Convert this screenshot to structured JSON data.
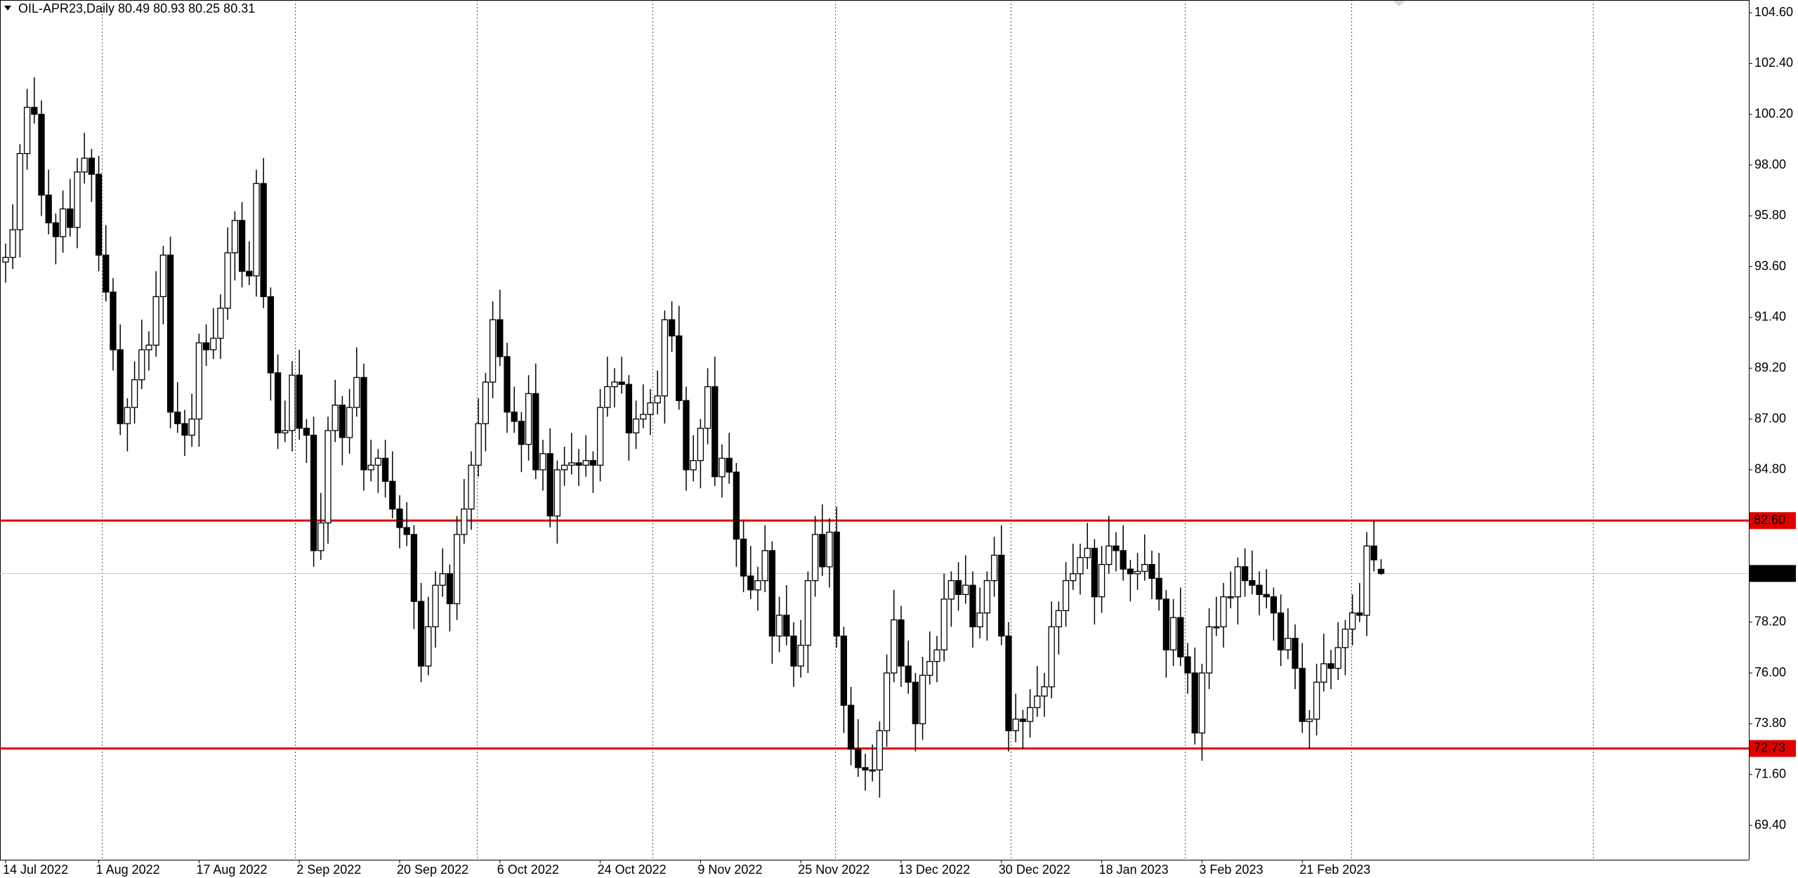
{
  "chart_data": {
    "type": "candlestick",
    "title": "OIL-APR23,Daily  80.49 80.93 80.25 80.31",
    "bull_color": "#ffffff",
    "bear_color": "#000000",
    "outline_color": "#000000",
    "categories": [
      "14 Jul 2022",
      null,
      null,
      null,
      null,
      null,
      null,
      null,
      null,
      null,
      null,
      null,
      null,
      "1 Aug 2022",
      null,
      null,
      null,
      null,
      null,
      null,
      null,
      null,
      null,
      null,
      null,
      null,
      null,
      "17 Aug 2022",
      null,
      null,
      null,
      null,
      null,
      null,
      null,
      null,
      null,
      null,
      null,
      null,
      null,
      "2 Sep 2022",
      null,
      null,
      null,
      null,
      null,
      null,
      null,
      null,
      null,
      null,
      null,
      null,
      null,
      "20 Sep 2022",
      null,
      null,
      null,
      null,
      null,
      null,
      null,
      null,
      null,
      null,
      null,
      null,
      null,
      "6 Oct 2022",
      null,
      null,
      null,
      null,
      null,
      null,
      null,
      null,
      null,
      null,
      null,
      null,
      null,
      "24 Oct 2022",
      null,
      null,
      null,
      null,
      null,
      null,
      null,
      null,
      null,
      null,
      null,
      null,
      null,
      "9 Nov 2022",
      null,
      null,
      null,
      null,
      null,
      null,
      null,
      null,
      null,
      null,
      null,
      null,
      null,
      "25 Nov 2022",
      null,
      null,
      null,
      null,
      null,
      null,
      null,
      null,
      null,
      null,
      null,
      null,
      null,
      "13 Dec 2022",
      null,
      null,
      null,
      null,
      null,
      null,
      null,
      null,
      null,
      null,
      null,
      null,
      null,
      "30 Dec 2022",
      null,
      null,
      null,
      null,
      null,
      null,
      null,
      null,
      null,
      null,
      null,
      null,
      null,
      "18 Jan 2023",
      null,
      null,
      null,
      null,
      null,
      null,
      null,
      null,
      null,
      null,
      null,
      null,
      null,
      "3 Feb 2023",
      null,
      null,
      null,
      null,
      null,
      null,
      null,
      null,
      null,
      null,
      null,
      null,
      null,
      "21 Feb 2023",
      null,
      null,
      null,
      null,
      null,
      null,
      null,
      null,
      null,
      null,
      null
    ],
    "open": [
      93.8,
      94.0,
      95.2,
      98.5,
      100.5,
      100.2,
      96.7,
      95.5,
      94.9,
      96.1,
      95.3,
      97.7,
      98.3,
      97.6,
      94.1,
      92.5,
      90.0,
      86.8,
      87.5,
      88.7,
      90.0,
      90.2,
      92.3,
      94.1,
      87.3,
      86.8,
      86.3,
      87.0,
      90.3,
      90.0,
      90.5,
      91.8,
      94.2,
      95.6,
      93.4,
      93.2,
      97.2,
      92.3,
      89.0,
      86.4,
      86.5,
      88.9,
      86.6,
      86.3,
      81.3,
      82.5,
      86.5,
      87.6,
      86.2,
      87.5,
      88.8,
      84.8,
      85.0,
      85.3,
      84.3,
      83.1,
      82.3,
      82.0,
      79.1,
      76.3,
      78.0,
      79.8,
      80.3,
      79.0,
      82.0,
      83.1,
      85.0,
      86.8,
      88.6,
      91.3,
      89.7,
      87.3,
      86.9,
      85.9,
      88.1,
      84.8,
      85.5,
      82.8,
      84.8,
      85.0,
      85.1,
      85.0,
      85.2,
      85.0,
      87.5,
      88.4,
      88.6,
      88.5,
      86.4,
      87.0,
      87.2,
      87.7,
      88.0,
      91.3,
      90.6,
      87.8,
      84.8,
      85.2,
      86.6,
      88.4,
      84.5,
      85.3,
      84.7,
      81.8,
      80.2,
      79.6,
      80.0,
      81.3,
      77.6,
      78.5,
      77.6,
      76.3,
      77.2,
      80.0,
      82.0,
      80.6,
      82.1,
      77.6,
      74.6,
      72.7,
      71.9,
      71.8,
      71.8,
      73.5,
      76.0,
      78.3,
      76.3,
      75.6,
      73.8,
      75.9,
      76.5,
      77.0,
      79.2,
      80.0,
      79.4,
      79.8,
      78.0,
      78.6,
      80.0,
      81.1,
      77.6,
      73.5,
      74.0,
      73.9,
      74.5,
      75.0,
      75.4,
      78.0,
      78.7,
      80.0,
      80.3,
      81.0,
      81.4,
      79.3,
      80.7,
      81.5,
      81.3,
      80.5,
      80.3,
      80.4,
      80.7,
      80.1,
      79.2,
      77.0,
      78.4,
      76.7,
      76.0,
      73.4,
      76.0,
      78.0,
      78.0,
      79.3,
      79.3,
      80.6,
      80.0,
      79.8,
      79.4,
      79.3,
      78.6,
      77.0,
      77.5,
      76.2,
      73.9,
      74.0,
      75.6,
      76.4,
      76.2,
      77.1,
      77.9,
      78.6,
      78.5,
      81.5,
      80.49
    ],
    "high": [
      94.6,
      96.3,
      98.9,
      101.3,
      101.8,
      100.8,
      97.8,
      95.9,
      96.9,
      97.4,
      98.3,
      99.4,
      98.7,
      98.4,
      95.4,
      93.1,
      91.1,
      87.9,
      89.5,
      91.3,
      90.8,
      93.4,
      94.5,
      94.9,
      88.6,
      87.4,
      88.1,
      90.7,
      91.1,
      91.8,
      92.4,
      95.3,
      96.0,
      96.4,
      94.7,
      97.8,
      98.3,
      92.7,
      89.8,
      87.8,
      89.5,
      90.0,
      87.0,
      87.1,
      83.8,
      87.1,
      88.7,
      88.0,
      88.3,
      90.1,
      89.4,
      86.1,
      85.7,
      86.1,
      85.6,
      83.7,
      83.4,
      82.4,
      79.9,
      79.3,
      80.4,
      81.4,
      80.7,
      82.8,
      84.4,
      85.6,
      87.9,
      89.0,
      92.1,
      92.6,
      90.3,
      88.4,
      87.3,
      88.9,
      89.4,
      86.1,
      86.6,
      85.2,
      85.8,
      86.4,
      85.7,
      86.3,
      85.6,
      88.3,
      89.7,
      89.2,
      89.7,
      88.9,
      87.8,
      88.5,
      88.3,
      89.1,
      91.7,
      92.1,
      91.9,
      88.4,
      86.3,
      87.0,
      89.2,
      89.7,
      85.9,
      86.4,
      85.1,
      82.6,
      81.5,
      80.6,
      82.4,
      81.7,
      79.3,
      79.8,
      78.2,
      78.3,
      80.4,
      82.8,
      83.3,
      82.7,
      83.2,
      78.0,
      75.4,
      74.0,
      72.5,
      72.9,
      73.9,
      76.8,
      79.6,
      78.9,
      77.4,
      76.0,
      76.7,
      77.8,
      77.6,
      80.3,
      80.4,
      80.8,
      81.1,
      80.4,
      79.7,
      80.4,
      81.9,
      82.4,
      78.2,
      75.1,
      74.4,
      75.3,
      76.3,
      76.0,
      79.1,
      79.1,
      80.8,
      81.6,
      81.6,
      82.5,
      81.8,
      81.5,
      82.8,
      82.1,
      82.4,
      80.9,
      81.2,
      82.0,
      81.3,
      81.2,
      79.6,
      79.2,
      79.7,
      77.3,
      77.1,
      76.4,
      78.8,
      79.3,
      79.9,
      80.4,
      81.0,
      81.4,
      81.3,
      80.4,
      80.5,
      79.7,
      79.4,
      78.8,
      78.1,
      77.3,
      74.4,
      76.4,
      77.7,
      77.0,
      78.2,
      78.3,
      79.4,
      79.9,
      82.1,
      82.6,
      80.93
    ],
    "low": [
      92.9,
      93.5,
      94.0,
      97.8,
      99.8,
      95.8,
      95.0,
      93.7,
      94.2,
      94.9,
      94.4,
      97.2,
      96.4,
      93.4,
      92.1,
      89.1,
      86.3,
      85.6,
      86.8,
      88.3,
      89.1,
      89.7,
      91.1,
      86.6,
      86.4,
      85.4,
      85.8,
      85.8,
      89.3,
      89.6,
      89.6,
      91.3,
      93.0,
      92.7,
      92.8,
      92.3,
      91.8,
      87.8,
      85.7,
      86.0,
      85.6,
      86.1,
      85.1,
      80.6,
      80.9,
      81.6,
      86.0,
      85.0,
      85.5,
      87.1,
      83.9,
      84.3,
      83.8,
      83.6,
      82.7,
      81.4,
      81.5,
      77.9,
      75.6,
      75.9,
      77.1,
      79.3,
      77.8,
      78.3,
      81.6,
      82.2,
      84.5,
      85.6,
      87.9,
      89.3,
      86.4,
      86.4,
      84.7,
      85.2,
      84.4,
      83.9,
      82.3,
      81.6,
      84.1,
      84.6,
      84.1,
      84.5,
      83.8,
      84.3,
      87.1,
      87.5,
      88.1,
      85.2,
      85.7,
      86.6,
      86.3,
      87.2,
      86.8,
      89.9,
      87.4,
      83.9,
      84.3,
      84.0,
      85.9,
      84.1,
      83.6,
      84.2,
      80.6,
      79.5,
      79.2,
      78.7,
      79.5,
      76.4,
      76.9,
      77.2,
      75.4,
      75.8,
      76.0,
      79.3,
      80.2,
      79.7,
      77.1,
      73.4,
      72.0,
      71.5,
      70.9,
      71.3,
      70.6,
      72.8,
      75.6,
      75.4,
      75.1,
      72.6,
      73.1,
      75.5,
      75.6,
      76.5,
      78.0,
      78.7,
      79.0,
      77.1,
      77.5,
      77.4,
      79.3,
      77.2,
      72.6,
      73.0,
      72.7,
      73.2,
      74.1,
      74.1,
      74.9,
      76.8,
      78.0,
      79.6,
      79.4,
      80.5,
      78.1,
      78.6,
      80.3,
      80.4,
      80.0,
      79.1,
      79.6,
      80.0,
      79.2,
      78.7,
      75.8,
      76.3,
      76.3,
      75.1,
      72.9,
      72.2,
      75.3,
      77.6,
      77.1,
      78.8,
      78.1,
      79.3,
      79.4,
      78.5,
      78.8,
      77.4,
      76.3,
      76.6,
      75.3,
      73.4,
      72.7,
      73.3,
      75.2,
      75.3,
      75.7,
      75.9,
      77.2,
      78.2,
      77.6,
      80.4,
      80.25
    ],
    "close": [
      94.0,
      95.2,
      98.5,
      100.5,
      100.2,
      96.7,
      95.5,
      94.9,
      96.1,
      95.3,
      97.7,
      98.3,
      97.6,
      94.1,
      92.5,
      90.0,
      86.8,
      87.5,
      88.7,
      90.0,
      90.2,
      92.3,
      94.1,
      87.3,
      86.8,
      86.3,
      87.0,
      90.3,
      90.0,
      90.5,
      91.8,
      94.2,
      95.6,
      93.4,
      93.2,
      97.2,
      92.3,
      89.0,
      86.4,
      86.5,
      88.9,
      86.6,
      86.3,
      81.3,
      82.5,
      86.5,
      87.6,
      86.2,
      87.5,
      88.8,
      84.8,
      85.0,
      85.3,
      84.3,
      83.1,
      82.3,
      82.0,
      79.1,
      76.3,
      78.0,
      79.8,
      80.3,
      79.0,
      82.0,
      83.1,
      85.0,
      86.8,
      88.6,
      91.3,
      89.7,
      87.3,
      86.9,
      85.9,
      88.1,
      84.8,
      85.5,
      82.8,
      84.8,
      85.0,
      85.1,
      85.0,
      85.2,
      85.0,
      87.5,
      88.4,
      88.6,
      88.5,
      86.4,
      87.0,
      87.2,
      87.7,
      88.0,
      91.3,
      90.6,
      87.8,
      84.8,
      85.2,
      86.6,
      88.4,
      84.5,
      85.3,
      84.7,
      81.8,
      80.2,
      79.6,
      80.0,
      81.3,
      77.6,
      78.5,
      77.6,
      76.3,
      77.2,
      80.0,
      82.0,
      80.6,
      82.1,
      77.6,
      74.6,
      72.7,
      71.9,
      71.8,
      71.8,
      73.5,
      76.0,
      78.3,
      76.3,
      75.6,
      73.8,
      75.9,
      76.5,
      77.0,
      79.2,
      80.0,
      79.4,
      79.8,
      78.0,
      78.6,
      80.0,
      81.1,
      77.6,
      73.5,
      74.0,
      73.9,
      74.5,
      75.0,
      75.4,
      78.0,
      78.7,
      80.0,
      80.3,
      81.0,
      81.4,
      79.3,
      80.7,
      81.5,
      81.3,
      80.5,
      80.3,
      80.4,
      80.7,
      80.1,
      79.2,
      77.0,
      78.4,
      76.7,
      76.0,
      73.4,
      76.0,
      78.0,
      78.0,
      79.3,
      79.3,
      80.6,
      80.0,
      79.8,
      79.4,
      79.3,
      78.6,
      77.0,
      77.5,
      76.2,
      73.9,
      74.0,
      75.6,
      76.4,
      76.2,
      77.1,
      77.9,
      78.6,
      78.5,
      81.5,
      80.9,
      80.31
    ],
    "ylim": [
      67.91,
      105.15
    ],
    "yticks": [
      {
        "value": 104.6,
        "label": "104.60"
      },
      {
        "value": 102.4,
        "label": "102.40"
      },
      {
        "value": 100.2,
        "label": "100.20"
      },
      {
        "value": 98,
        "label": "98.00"
      },
      {
        "value": 95.8,
        "label": "95.80"
      },
      {
        "value": 93.6,
        "label": "93.60"
      },
      {
        "value": 91.4,
        "label": "91.40"
      },
      {
        "value": 89.2,
        "label": "89.20"
      },
      {
        "value": 87,
        "label": "87.00"
      },
      {
        "value": 84.8,
        "label": "84.80"
      },
      {
        "value": 78.2,
        "label": "78.20"
      },
      {
        "value": 76,
        "label": "76.00"
      },
      {
        "value": 73.8,
        "label": "73.80"
      },
      {
        "value": 71.6,
        "label": "71.60"
      },
      {
        "value": 69.4,
        "label": "69.40"
      }
    ],
    "levels": [
      {
        "value": 82.6,
        "label": "82.60",
        "color": "#e00000"
      },
      {
        "value": 72.73,
        "label": "72.73",
        "color": "#e00000"
      }
    ],
    "current_price": {
      "value": 80.31,
      "label": "80.31",
      "color": "#c8c8c8",
      "label_color": "#000000"
    }
  }
}
